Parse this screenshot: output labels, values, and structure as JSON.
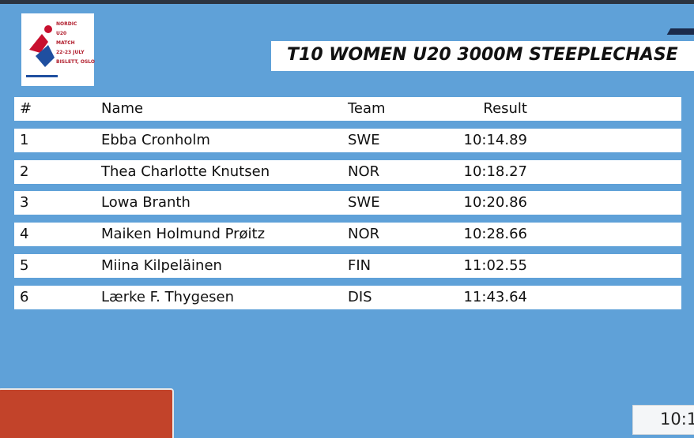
{
  "logo": {
    "lines": [
      "NORDIC",
      "U20",
      "MATCH",
      "22-23 JULY",
      "BISLETT, OSLO"
    ]
  },
  "title": "T10 WOMEN U20 3000M STEEPLECHASE",
  "table": {
    "header": [
      "#",
      "Name",
      "Team",
      "Result"
    ],
    "rows": [
      [
        "1",
        "Ebba Cronholm",
        "SWE",
        "10:14.89"
      ],
      [
        "2",
        "Thea Charlotte Knutsen",
        "NOR",
        "10:18.27"
      ],
      [
        "3",
        "Lowa Branth",
        "SWE",
        "10:20.86"
      ],
      [
        "4",
        "Maiken Holmund Prøitz",
        "NOR",
        "10:28.66"
      ],
      [
        "5",
        "Miina Kilpeläinen",
        "FIN",
        "11:02.55"
      ],
      [
        "6",
        "Lærke F. Thygesen",
        "DIS",
        "11:43.64"
      ]
    ]
  },
  "clock": "10:1"
}
